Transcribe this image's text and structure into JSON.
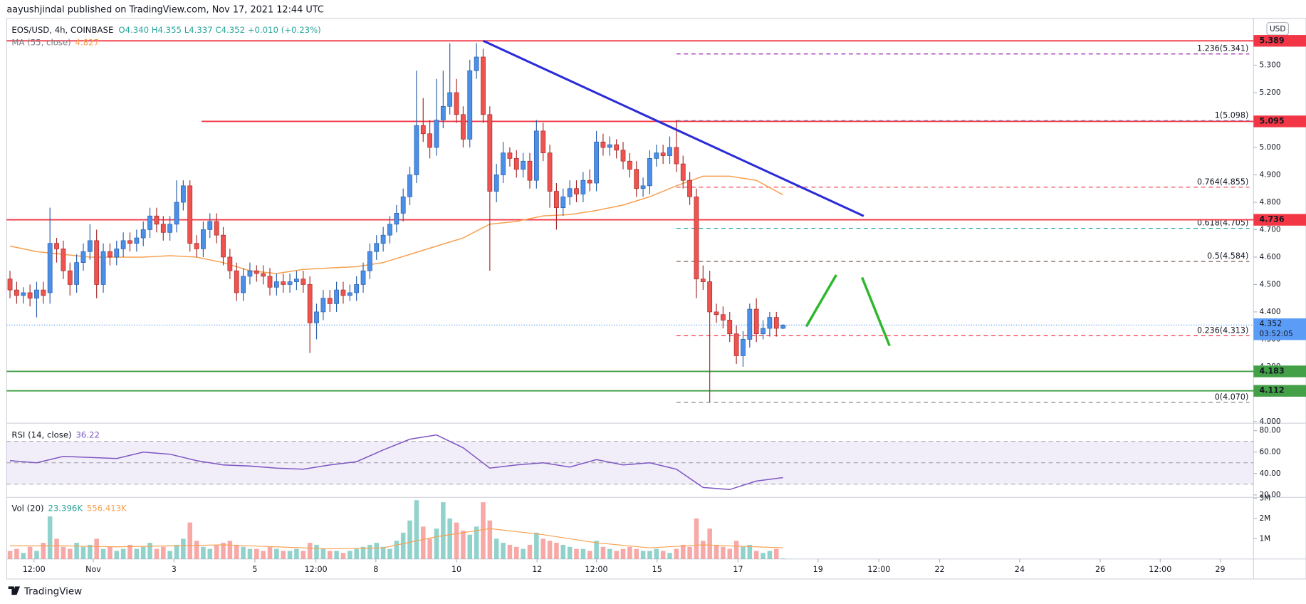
{
  "header": {
    "published": "aayushjindal published on TradingView.com, Nov 17, 2021 12:44 UTC",
    "symbol": "EOS/USD, 4h, COINBASE",
    "ohlc": "O4.340 H4.355 L4.337 C4.352 +0.010 (+0.23%)",
    "currency": "USD",
    "footer": "TradingView"
  },
  "chart_data": [
    {
      "type": "candlestick",
      "open": [
        4.52,
        4.48,
        4.46,
        4.47,
        4.45,
        4.48,
        4.47,
        4.65,
        4.63,
        4.55,
        4.5,
        4.58,
        4.62,
        4.66,
        4.5,
        4.62,
        4.6,
        4.63,
        4.66,
        4.65,
        4.67,
        4.7,
        4.75,
        4.72,
        4.69,
        4.72,
        4.8,
        4.86,
        4.65,
        4.63,
        4.7,
        4.73,
        4.68,
        4.6,
        4.55,
        4.47,
        4.53,
        4.55,
        4.54,
        4.53,
        4.49,
        4.51,
        4.5,
        4.51,
        4.52,
        4.5,
        4.36,
        4.4,
        4.45,
        4.43,
        4.48,
        4.46,
        4.47,
        4.5,
        4.55,
        4.62,
        4.65,
        4.68,
        4.72,
        4.76,
        4.82,
        4.9,
        5.08,
        5.05,
        5.0,
        5.1,
        5.15,
        5.2,
        5.12,
        5.03,
        5.28,
        5.33,
        5.12,
        4.84,
        4.9,
        4.98,
        4.96,
        4.92,
        4.95,
        4.88,
        5.06,
        4.98,
        4.84,
        4.78,
        4.82,
        4.85,
        4.83,
        4.88,
        4.87,
        5.02,
        5.0,
        5.01,
        4.99,
        4.95,
        4.92,
        4.85,
        4.86,
        4.96,
        4.98,
        4.97,
        5.0,
        4.94,
        4.88,
        4.82,
        4.52,
        4.51,
        4.4,
        4.39,
        4.37,
        4.32,
        4.24,
        4.3,
        4.41,
        4.32,
        4.34,
        4.38,
        4.34
      ],
      "high": [
        4.55,
        4.51,
        4.49,
        4.5,
        4.51,
        4.51,
        4.78,
        4.67,
        4.66,
        4.58,
        4.61,
        4.65,
        4.72,
        4.7,
        4.65,
        4.65,
        4.66,
        4.69,
        4.69,
        4.7,
        4.73,
        4.78,
        4.78,
        4.75,
        4.75,
        4.88,
        4.88,
        4.88,
        4.68,
        4.73,
        4.76,
        4.76,
        4.71,
        4.63,
        4.58,
        4.56,
        4.58,
        4.57,
        4.57,
        4.56,
        4.54,
        4.54,
        4.54,
        4.55,
        4.55,
        4.53,
        4.43,
        4.48,
        4.48,
        4.51,
        4.51,
        4.5,
        4.53,
        4.58,
        4.65,
        4.68,
        4.71,
        4.75,
        4.79,
        4.85,
        4.93,
        5.28,
        5.18,
        5.1,
        5.25,
        5.28,
        5.38,
        5.25,
        5.15,
        5.32,
        5.38,
        5.36,
        5.15,
        4.94,
        5.02,
        5.0,
        4.99,
        4.98,
        4.98,
        5.1,
        5.09,
        5.01,
        4.87,
        4.85,
        4.88,
        4.88,
        4.91,
        4.92,
        5.06,
        5.05,
        5.04,
        5.03,
        5.02,
        4.98,
        4.95,
        4.89,
        4.99,
        5.01,
        5.01,
        5.04,
        5.1,
        4.97,
        4.91,
        4.85,
        4.57,
        4.55,
        4.43,
        4.42,
        4.4,
        4.35,
        4.33,
        4.43,
        4.45,
        4.37,
        4.4,
        4.4,
        4.355
      ],
      "low": [
        4.45,
        4.43,
        4.43,
        4.42,
        4.38,
        4.43,
        4.43,
        4.58,
        4.52,
        4.46,
        4.47,
        4.55,
        4.59,
        4.45,
        4.47,
        4.57,
        4.57,
        4.6,
        4.62,
        4.62,
        4.64,
        4.67,
        4.69,
        4.66,
        4.66,
        4.69,
        4.77,
        4.62,
        4.6,
        4.6,
        4.67,
        4.65,
        4.57,
        4.52,
        4.44,
        4.44,
        4.5,
        4.51,
        4.5,
        4.46,
        4.46,
        4.47,
        4.47,
        4.48,
        4.47,
        4.25,
        4.3,
        4.37,
        4.4,
        4.4,
        4.43,
        4.44,
        4.44,
        4.47,
        4.52,
        4.59,
        4.62,
        4.65,
        4.69,
        4.73,
        4.79,
        4.87,
        5.02,
        4.96,
        4.97,
        5.07,
        5.12,
        5.09,
        5.0,
        5.0,
        5.25,
        5.09,
        4.55,
        4.8,
        4.87,
        4.93,
        4.89,
        4.89,
        4.85,
        4.85,
        4.95,
        4.78,
        4.7,
        4.75,
        4.79,
        4.8,
        4.8,
        4.84,
        4.84,
        4.97,
        4.97,
        4.96,
        4.92,
        4.89,
        4.82,
        4.82,
        4.83,
        4.93,
        4.94,
        4.94,
        4.91,
        4.85,
        4.79,
        4.45,
        4.48,
        4.07,
        4.36,
        4.34,
        4.29,
        4.21,
        4.2,
        4.27,
        4.29,
        4.3,
        4.31,
        4.31,
        4.337
      ],
      "close": [
        4.48,
        4.46,
        4.47,
        4.45,
        4.48,
        4.46,
        4.65,
        4.63,
        4.55,
        4.5,
        4.58,
        4.62,
        4.66,
        4.5,
        4.62,
        4.6,
        4.63,
        4.66,
        4.65,
        4.67,
        4.7,
        4.75,
        4.72,
        4.69,
        4.72,
        4.8,
        4.86,
        4.65,
        4.63,
        4.7,
        4.73,
        4.68,
        4.6,
        4.55,
        4.47,
        4.53,
        4.55,
        4.54,
        4.53,
        4.49,
        4.51,
        4.5,
        4.51,
        4.52,
        4.5,
        4.36,
        4.4,
        4.45,
        4.43,
        4.48,
        4.46,
        4.47,
        4.5,
        4.55,
        4.62,
        4.65,
        4.68,
        4.72,
        4.76,
        4.82,
        4.9,
        5.08,
        5.05,
        5.0,
        5.1,
        5.15,
        5.2,
        5.12,
        5.03,
        5.28,
        5.33,
        5.12,
        4.84,
        4.9,
        4.98,
        4.96,
        4.92,
        4.95,
        4.88,
        5.06,
        4.98,
        4.84,
        4.78,
        4.82,
        4.85,
        4.83,
        4.88,
        4.87,
        5.02,
        5.0,
        5.01,
        4.99,
        4.95,
        4.92,
        4.85,
        4.86,
        4.96,
        4.98,
        4.97,
        5.0,
        4.94,
        4.88,
        4.82,
        4.52,
        4.51,
        4.4,
        4.39,
        4.37,
        4.32,
        4.24,
        4.3,
        4.41,
        4.32,
        4.34,
        4.38,
        4.34,
        4.352
      ],
      "up_color": "#4c8fe8",
      "down_color": "#ef5350",
      "xlim": [
        -0.5,
        186.6
      ],
      "xticks": [
        {
          "value": 3.6,
          "label": "12:00"
        },
        {
          "value": 12.5,
          "label": "Nov"
        },
        {
          "value": 24.6,
          "label": "3"
        },
        {
          "value": 36.75,
          "label": "5"
        },
        {
          "value": 45.9,
          "label": "12:00"
        },
        {
          "value": 54.9,
          "label": "8"
        },
        {
          "value": 67,
          "label": "10"
        },
        {
          "value": 79.1,
          "label": "12"
        },
        {
          "value": 88,
          "label": "12:00"
        },
        {
          "value": 97.1,
          "label": "15"
        },
        {
          "value": 109.25,
          "label": "17"
        },
        {
          "value": 121.25,
          "label": "19"
        },
        {
          "value": 130.4,
          "label": "12:00"
        },
        {
          "value": 139.5,
          "label": "22"
        },
        {
          "value": 151.5,
          "label": "24"
        },
        {
          "value": 163.6,
          "label": "26"
        },
        {
          "value": 172.6,
          "label": "12:00"
        },
        {
          "value": 181.6,
          "label": "29"
        }
      ],
      "ylim": [
        4.0,
        5.471
      ],
      "yticks": [
        {
          "value": 4.0,
          "label": "4.000"
        },
        {
          "value": 4.1,
          "label": "4.100"
        },
        {
          "value": 4.2,
          "label": "4.200"
        },
        {
          "value": 4.3,
          "label": "4.300"
        },
        {
          "value": 4.4,
          "label": "4.400"
        },
        {
          "value": 4.5,
          "label": "4.500"
        },
        {
          "value": 4.6,
          "label": "4.600"
        },
        {
          "value": 4.7,
          "label": "4.700"
        },
        {
          "value": 4.8,
          "label": "4.800"
        },
        {
          "value": 4.9,
          "label": "4.900"
        },
        {
          "value": 5.0,
          "label": "5.000"
        },
        {
          "value": 5.1,
          "label": "5.100"
        },
        {
          "value": 5.2,
          "label": "5.200"
        },
        {
          "value": 5.3,
          "label": "5.300"
        }
      ],
      "series": [
        {
          "name": "MA (55, close)",
          "color": "#f7a151",
          "value_label": "4.827",
          "x": [
            0,
            4,
            8,
            12,
            16,
            20,
            24,
            28,
            32,
            36,
            40,
            44,
            48,
            52,
            56,
            60,
            64,
            68,
            72,
            76,
            80,
            84,
            88,
            92,
            96,
            100,
            104,
            108,
            112,
            116
          ],
          "values": [
            4.64,
            4.62,
            4.61,
            4.6,
            4.6,
            4.6,
            4.605,
            4.6,
            4.58,
            4.55,
            4.54,
            4.555,
            4.56,
            4.565,
            4.58,
            4.61,
            4.64,
            4.67,
            4.72,
            4.73,
            4.75,
            4.755,
            4.77,
            4.79,
            4.82,
            4.86,
            4.895,
            4.895,
            4.88,
            4.827
          ]
        }
      ],
      "levels": [
        {
          "value": 5.389,
          "label": "5.389",
          "color": "#f23645",
          "start": -0.5
        },
        {
          "value": 5.095,
          "label": "5.095",
          "color": "#f23645",
          "start": 28.75
        },
        {
          "value": 4.736,
          "label": "4.736",
          "color": "#f23645",
          "start": -0.5
        },
        {
          "value": 4.183,
          "label": "4.183",
          "color": "#43a047",
          "start": -0.5
        },
        {
          "value": 4.112,
          "label": "4.112",
          "color": "#43a047",
          "start": -0.5
        }
      ],
      "fib": {
        "start": 100,
        "levels": [
          {
            "label": "1.236(5.341)",
            "value": 5.341,
            "color": "#9c27b0"
          },
          {
            "label": "1(5.098)",
            "value": 5.098,
            "color": "#3d9ad6"
          },
          {
            "label": "0.764(4.855)",
            "value": 4.855,
            "color": "#f23645"
          },
          {
            "label": "0.618(4.705)",
            "value": 4.705,
            "color": "#26a69a"
          },
          {
            "label": "0.5(4.584)",
            "value": 4.584,
            "color": "#6d4c41"
          },
          {
            "label": "0.236(4.313)",
            "value": 4.313,
            "color": "#f23645"
          },
          {
            "label": "0(4.070)",
            "value": 4.07,
            "color": "#787b86"
          }
        ]
      },
      "trendline": {
        "x": [
          71,
          128.1
        ],
        "values": [
          5.389,
          4.75
        ],
        "color": "#2b2bd9"
      },
      "last": {
        "value": 4.352,
        "label": "4.352",
        "countdown": "03:52:05",
        "color": "#5b9cf6"
      }
    },
    {
      "type": "line",
      "title": "RSI (14, close)",
      "value_label": "36.22",
      "color": "#7e57c2",
      "x": [
        0,
        4,
        8,
        12,
        16,
        20,
        24,
        28,
        32,
        36,
        40,
        44,
        48,
        52,
        56,
        60,
        64,
        68,
        72,
        76,
        80,
        84,
        88,
        92,
        96,
        100,
        104,
        108,
        112,
        116
      ],
      "values": [
        52,
        50,
        56,
        55,
        54,
        60,
        58,
        52,
        48,
        47,
        45,
        44,
        48,
        51,
        62,
        72,
        76,
        64,
        45,
        48,
        50,
        46,
        53,
        48,
        50,
        44,
        27,
        25,
        33,
        36.22
      ],
      "ylim": [
        18.5,
        85.4
      ],
      "yticks": [
        {
          "value": 20,
          "label": "20.00"
        },
        {
          "value": 40,
          "label": "40.00"
        },
        {
          "value": 60,
          "label": "60.00"
        },
        {
          "value": 80,
          "label": "80.00"
        }
      ],
      "band": [
        30,
        70
      ],
      "midline": 50
    },
    {
      "type": "bar",
      "title": "Vol (20)",
      "value_label": "23.396K",
      "up_color": "#26a69a",
      "down_color": "#ef5350",
      "values": [
        0.4,
        0.5,
        0.3,
        0.6,
        0.4,
        0.8,
        2.1,
        1.0,
        0.6,
        0.5,
        0.8,
        0.6,
        0.7,
        1.0,
        0.5,
        0.6,
        0.4,
        0.5,
        0.7,
        0.5,
        0.6,
        0.8,
        0.5,
        0.6,
        0.4,
        0.7,
        1.0,
        1.8,
        0.9,
        0.6,
        0.5,
        0.7,
        0.8,
        0.9,
        0.7,
        0.6,
        0.5,
        0.5,
        0.4,
        0.6,
        0.5,
        0.4,
        0.4,
        0.5,
        0.4,
        0.8,
        0.7,
        0.5,
        0.4,
        0.4,
        0.3,
        0.4,
        0.5,
        0.6,
        0.7,
        0.8,
        0.6,
        0.5,
        0.9,
        1.3,
        1.9,
        2.9,
        1.6,
        1.0,
        1.5,
        2.8,
        2.0,
        1.8,
        1.4,
        1.2,
        1.6,
        2.8,
        1.9,
        1.0,
        0.8,
        0.7,
        0.6,
        0.5,
        0.7,
        1.3,
        1.0,
        0.9,
        0.8,
        0.7,
        0.6,
        0.5,
        0.5,
        0.4,
        0.9,
        0.6,
        0.5,
        0.4,
        0.5,
        0.6,
        0.5,
        0.4,
        0.4,
        0.5,
        0.4,
        0.3,
        0.5,
        0.7,
        0.6,
        2.0,
        0.9,
        1.5,
        0.7,
        0.6,
        0.5,
        0.9,
        0.6,
        0.7,
        0.4,
        0.3,
        0.4,
        0.5,
        0.023396
      ],
      "series": [
        {
          "color": "#f7a151",
          "value_label": "556.413K",
          "x": [
            0,
            8,
            16,
            24,
            32,
            40,
            48,
            56,
            64,
            72,
            80,
            88,
            96,
            104,
            112,
            116
          ],
          "values": [
            0.65,
            0.65,
            0.6,
            0.65,
            0.7,
            0.6,
            0.5,
            0.55,
            1.1,
            1.5,
            1.2,
            0.8,
            0.55,
            0.7,
            0.6,
            0.556413
          ]
        }
      ],
      "ylim": [
        0,
        3
      ],
      "yticks": [
        {
          "value": 1,
          "label": "1M"
        },
        {
          "value": 2,
          "label": "2M"
        },
        {
          "value": 3,
          "label": "3M"
        }
      ]
    }
  ]
}
